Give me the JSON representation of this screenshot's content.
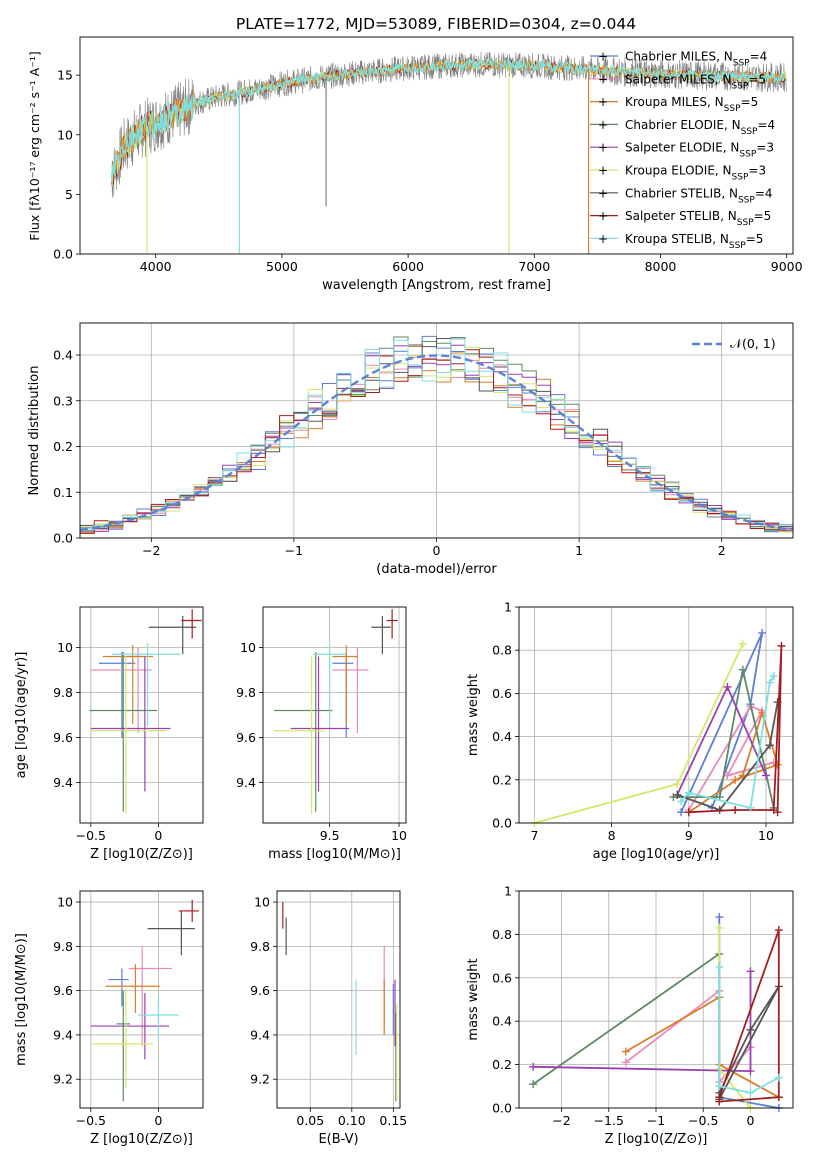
{
  "figure_title": "PLATE=1772, MJD=53089, FIBERID=0304, z=0.044",
  "legend_models": [
    {
      "label": "Chabrier MILES, N",
      "n": "=4",
      "color": "#5b7fd6",
      "marker": "+"
    },
    {
      "label": "Salpeter MILES, N",
      "n": "=5",
      "color": "#e98ab8",
      "marker": "+"
    },
    {
      "label": "Kroupa MILES, N",
      "n": "=5",
      "color": "#d97f2b",
      "marker": "+"
    },
    {
      "label": "Chabrier ELODIE, N",
      "n": "=4",
      "color": "#5d8a64",
      "marker": "+"
    },
    {
      "label": "Salpeter ELODIE, N",
      "n": "=3",
      "color": "#9b3fb0",
      "marker": "+"
    },
    {
      "label": "Kroupa ELODIE, N",
      "n": "=3",
      "color": "#d4e86a",
      "marker": "+"
    },
    {
      "label": "Chabrier STELIB, N",
      "n": "=4",
      "color": "#555555",
      "marker": "+"
    },
    {
      "label": "Salpeter STELIB, N",
      "n": "=5",
      "color": "#a31f1f",
      "marker": "+"
    },
    {
      "label": "Kroupa STELIB, N",
      "n": "=5",
      "color": "#7fdfe0",
      "marker": "+"
    }
  ],
  "legend_subscript": "SSP",
  "chart_data": [
    {
      "type": "line",
      "id": "spectrum",
      "xlabel": "wavelength [Angstrom, rest frame]",
      "ylabel": "Flux [f_λ 10^-17 erg cm^-2 s^-1 A^-1]",
      "xlim": [
        3400,
        9050
      ],
      "ylim": [
        0,
        18.2
      ],
      "xticks": [
        4000,
        5000,
        6000,
        7000,
        8000,
        9000
      ],
      "yticks": [
        0,
        5,
        10,
        15
      ],
      "data_range": [
        3650,
        9000
      ],
      "data_color": "#808080",
      "model_color": "#7fdfe0",
      "continuum": [
        [
          3650,
          6.5
        ],
        [
          3750,
          9.0
        ],
        [
          3900,
          10.5
        ],
        [
          4100,
          11.5
        ],
        [
          4300,
          12.6
        ],
        [
          4500,
          13.2
        ],
        [
          4800,
          13.8
        ],
        [
          5000,
          14.3
        ],
        [
          5300,
          14.8
        ],
        [
          5600,
          15.2
        ],
        [
          6000,
          15.6
        ],
        [
          6300,
          15.8
        ],
        [
          6600,
          15.9
        ],
        [
          7000,
          15.8
        ],
        [
          7400,
          15.5
        ],
        [
          7800,
          15.2
        ],
        [
          8200,
          15.0
        ],
        [
          8600,
          14.9
        ],
        [
          9000,
          14.8
        ]
      ],
      "spikes": [
        [
          4663,
          0
        ],
        [
          3930,
          0
        ],
        [
          6800,
          0
        ],
        [
          7430,
          0
        ],
        [
          5350,
          4.0
        ]
      ]
    },
    {
      "type": "step",
      "id": "residuals",
      "xlabel": "(data-model)/error",
      "ylabel": "Normed distribution",
      "xlim": [
        -2.5,
        2.5
      ],
      "ylim": [
        0,
        0.47
      ],
      "xticks": [
        -2,
        -1,
        0,
        1,
        2
      ],
      "yticks": [
        0.0,
        0.1,
        0.2,
        0.3,
        0.4
      ],
      "bin_width": 0.1,
      "reference": {
        "label": "𝒩(0, 1)",
        "mean": 0,
        "sigma": 1,
        "color": "#5b84d6"
      }
    },
    {
      "type": "errorbar",
      "id": "age_vs_Z",
      "xlabel": "Z [log10(Z/Z⊙)]",
      "ylabel": "age [log10(age/yr)]",
      "xlim": [
        -0.58,
        0.33
      ],
      "ylim": [
        9.22,
        10.18
      ],
      "xticks": [
        -0.5,
        0.0
      ],
      "yticks": [
        9.4,
        9.6,
        9.8,
        10.0
      ],
      "points": [
        {
          "model": 0,
          "x": -0.27,
          "xerr": [
            0.17,
            0.1
          ],
          "y": 9.93,
          "yerr": [
            0.33,
            0.05
          ]
        },
        {
          "model": 1,
          "x": -0.15,
          "xerr": [
            0.35,
            0.1
          ],
          "y": 9.9,
          "yerr": [
            0.28,
            0.1
          ]
        },
        {
          "model": 2,
          "x": -0.19,
          "xerr": [
            0.22,
            0.15
          ],
          "y": 9.96,
          "yerr": [
            0.3,
            0.05
          ]
        },
        {
          "model": 3,
          "x": -0.26,
          "xerr": [
            0.25,
            0.25
          ],
          "y": 9.72,
          "yerr": [
            0.45,
            0.26
          ]
        },
        {
          "model": 4,
          "x": -0.1,
          "xerr": [
            0.4,
            0.19
          ],
          "y": 9.64,
          "yerr": [
            0.28,
            0.32
          ]
        },
        {
          "model": 5,
          "x": -0.24,
          "xerr": [
            0.26,
            0.3
          ],
          "y": 9.63,
          "yerr": [
            0.37,
            0.33
          ]
        },
        {
          "model": 6,
          "x": 0.18,
          "xerr": [
            0.25,
            0.1
          ],
          "y": 10.09,
          "yerr": [
            0.12,
            0.05
          ]
        },
        {
          "model": 7,
          "x": 0.25,
          "xerr": [
            0.08,
            0.07
          ],
          "y": 10.12,
          "yerr": [
            0.08,
            0.05
          ]
        },
        {
          "model": 8,
          "x": -0.08,
          "xerr": [
            0.26,
            0.24
          ],
          "y": 9.97,
          "yerr": [
            0.32,
            0.05
          ]
        }
      ]
    },
    {
      "type": "errorbar",
      "id": "age_vs_mass",
      "xlabel": "mass [log10(M/M⊙)]",
      "ylabel": "",
      "xlim": [
        9.02,
        10.05
      ],
      "ylim": [
        9.22,
        10.18
      ],
      "xticks": [
        9.5,
        10.0
      ],
      "yticks": [
        9.4,
        9.6,
        9.8,
        10.0
      ],
      "points": [
        {
          "model": 0,
          "x": 9.62,
          "xerr": [
            0.1,
            0.05
          ],
          "y": 9.93,
          "yerr": [
            0.33,
            0.05
          ]
        },
        {
          "model": 1,
          "x": 9.7,
          "xerr": [
            0.18,
            0.08
          ],
          "y": 9.9,
          "yerr": [
            0.28,
            0.1
          ]
        },
        {
          "model": 2,
          "x": 9.62,
          "xerr": [
            0.1,
            0.08
          ],
          "y": 9.96,
          "yerr": [
            0.3,
            0.05
          ]
        },
        {
          "model": 3,
          "x": 9.4,
          "xerr": [
            0.3,
            0.12
          ],
          "y": 9.72,
          "yerr": [
            0.45,
            0.26
          ]
        },
        {
          "model": 4,
          "x": 9.42,
          "xerr": [
            0.2,
            0.22
          ],
          "y": 9.64,
          "yerr": [
            0.28,
            0.32
          ]
        },
        {
          "model": 5,
          "x": 9.37,
          "xerr": [
            0.27,
            0.1
          ],
          "y": 9.63,
          "yerr": [
            0.37,
            0.33
          ]
        },
        {
          "model": 6,
          "x": 9.88,
          "xerr": [
            0.08,
            0.06
          ],
          "y": 10.09,
          "yerr": [
            0.12,
            0.05
          ]
        },
        {
          "model": 7,
          "x": 9.95,
          "xerr": [
            0.04,
            0.04
          ],
          "y": 10.12,
          "yerr": [
            0.08,
            0.05
          ]
        },
        {
          "model": 8,
          "x": 9.5,
          "xerr": [
            0.12,
            0.12
          ],
          "y": 9.97,
          "yerr": [
            0.32,
            0.05
          ]
        }
      ]
    },
    {
      "type": "line",
      "id": "weights_vs_age",
      "xlabel": "age [log10(age/yr)]",
      "ylabel": "mass weight",
      "xlim": [
        6.8,
        10.35
      ],
      "ylim": [
        0,
        1.0
      ],
      "xticks": [
        7,
        8,
        9,
        10
      ],
      "yticks": [
        0.0,
        0.2,
        0.4,
        0.6,
        0.8,
        1.0
      ],
      "series": [
        {
          "model": 0,
          "x": [
            8.9,
            9.95,
            9.8,
            9.3
          ],
          "y": [
            0.05,
            0.88,
            0.55,
            0.07
          ]
        },
        {
          "model": 1,
          "x": [
            9.0,
            9.8,
            9.95,
            9.5,
            10.1
          ],
          "y": [
            0.06,
            0.54,
            0.52,
            0.22,
            0.28
          ]
        },
        {
          "model": 2,
          "x": [
            9.0,
            9.7,
            9.95,
            10.15,
            9.6
          ],
          "y": [
            0.05,
            0.22,
            0.51,
            0.27,
            0.2
          ]
        },
        {
          "model": 3,
          "x": [
            8.8,
            9.4,
            9.7,
            10.1
          ],
          "y": [
            0.12,
            0.12,
            0.71,
            0.07
          ]
        },
        {
          "model": 4,
          "x": [
            8.85,
            9.5,
            10.0
          ],
          "y": [
            0.13,
            0.63,
            0.22
          ]
        },
        {
          "model": 5,
          "x": [
            7.0,
            8.85,
            9.7
          ],
          "y": [
            0.0,
            0.18,
            0.83
          ]
        },
        {
          "model": 6,
          "x": [
            8.85,
            9.4,
            10.05,
            10.15
          ],
          "y": [
            0.13,
            0.06,
            0.36,
            0.56
          ]
        },
        {
          "model": 7,
          "x": [
            9.0,
            9.6,
            10.1,
            10.2,
            10.15
          ],
          "y": [
            0.05,
            0.06,
            0.06,
            0.82,
            0.05
          ]
        },
        {
          "model": 8,
          "x": [
            8.9,
            9.0,
            9.8,
            10.05,
            10.1
          ],
          "y": [
            0.1,
            0.14,
            0.07,
            0.65,
            0.68
          ]
        }
      ]
    },
    {
      "type": "errorbar",
      "id": "mass_vs_Z",
      "xlabel": "Z [log10(Z/Z⊙)]",
      "ylabel": "mass [log10(M/M⊙)]",
      "xlim": [
        -0.58,
        0.33
      ],
      "ylim": [
        9.07,
        10.05
      ],
      "xticks": [
        -0.5,
        0.0
      ],
      "yticks": [
        9.2,
        9.4,
        9.6,
        9.8,
        10.0
      ],
      "points": [
        {
          "model": 0,
          "x": -0.27,
          "xerr": [
            0.1,
            0.05
          ],
          "y": 9.65,
          "yerr": [
            0.12,
            0.05
          ]
        },
        {
          "model": 1,
          "x": -0.12,
          "xerr": [
            0.1,
            0.22
          ],
          "y": 9.7,
          "yerr": [
            0.35,
            0.1
          ]
        },
        {
          "model": 2,
          "x": -0.17,
          "xerr": [
            0.22,
            0.18
          ],
          "y": 9.62,
          "yerr": [
            0.12,
            0.1
          ]
        },
        {
          "model": 3,
          "x": -0.26,
          "xerr": [
            0.05,
            0.05
          ],
          "y": 9.45,
          "yerr": [
            0.35,
            0.15
          ]
        },
        {
          "model": 4,
          "x": -0.1,
          "xerr": [
            0.4,
            0.18
          ],
          "y": 9.44,
          "yerr": [
            0.15,
            0.15
          ]
        },
        {
          "model": 5,
          "x": -0.24,
          "xerr": [
            0.25,
            0.2
          ],
          "y": 9.36,
          "yerr": [
            0.2,
            0.25
          ]
        },
        {
          "model": 6,
          "x": 0.17,
          "xerr": [
            0.25,
            0.1
          ],
          "y": 9.88,
          "yerr": [
            0.12,
            0.08
          ]
        },
        {
          "model": 7,
          "x": 0.25,
          "xerr": [
            0.1,
            0.05
          ],
          "y": 9.96,
          "yerr": [
            0.05,
            0.05
          ]
        },
        {
          "model": 8,
          "x": 0.0,
          "xerr": [
            0.15,
            0.15
          ],
          "y": 9.49,
          "yerr": [
            0.12,
            0.08
          ]
        }
      ]
    },
    {
      "type": "errorbar",
      "id": "mass_vs_ebv",
      "xlabel": "E(B-V)",
      "ylabel": "",
      "xlim": [
        0.01,
        0.158
      ],
      "ylim": [
        9.07,
        10.05
      ],
      "xticks": [
        0.05,
        0.1,
        0.15
      ],
      "xtick_labels": [
        "0.05",
        "0.10",
        "0.15"
      ],
      "yticks": [
        9.2,
        9.4,
        9.6,
        9.8,
        10.0
      ],
      "points": [
        {
          "model": 0,
          "x": 0.15,
          "y": 9.55,
          "yerr": [
            0.15,
            0.08
          ]
        },
        {
          "model": 1,
          "x": 0.139,
          "y": 9.65,
          "yerr": [
            0.22,
            0.15
          ]
        },
        {
          "model": 2,
          "x": 0.139,
          "y": 9.6,
          "yerr": [
            0.2,
            0.05
          ]
        },
        {
          "model": 3,
          "x": 0.153,
          "y": 9.35,
          "yerr": [
            0.25,
            0.15
          ]
        },
        {
          "model": 4,
          "x": 0.152,
          "y": 9.5,
          "yerr": [
            0.15,
            0.15
          ]
        },
        {
          "model": 5,
          "x": 0.154,
          "y": 9.4,
          "yerr": [
            0.3,
            0.14
          ]
        },
        {
          "model": 6,
          "x": 0.021,
          "y": 9.88,
          "yerr": [
            0.12,
            0.05
          ]
        },
        {
          "model": 7,
          "x": 0.017,
          "y": 9.94,
          "yerr": [
            0.06,
            0.06
          ]
        },
        {
          "model": 8,
          "x": 0.105,
          "y": 9.48,
          "yerr": [
            0.17,
            0.17
          ]
        }
      ]
    },
    {
      "type": "line",
      "id": "weights_vs_Z",
      "xlabel": "Z [log10(Z/Z⊙)]",
      "ylabel": "mass weight",
      "xlim": [
        -2.45,
        0.45
      ],
      "ylim": [
        0,
        1.0
      ],
      "xticks": [
        -2.0,
        -1.5,
        -1.0,
        -0.5,
        0.0
      ],
      "yticks": [
        0.0,
        0.2,
        0.4,
        0.6,
        0.8,
        1.0
      ],
      "series": [
        {
          "model": 0,
          "x": [
            -0.33,
            -0.33,
            0.3
          ],
          "y": [
            0.88,
            0.05,
            0.0
          ]
        },
        {
          "model": 1,
          "x": [
            -1.32,
            -0.33,
            -0.33,
            0.0
          ],
          "y": [
            0.21,
            0.54,
            0.12,
            0.28
          ]
        },
        {
          "model": 2,
          "x": [
            -1.32,
            -0.33,
            -0.33,
            0.3
          ],
          "y": [
            0.26,
            0.51,
            0.2,
            0.05
          ]
        },
        {
          "model": 3,
          "x": [
            -2.3,
            -0.33,
            -0.33
          ],
          "y": [
            0.11,
            0.71,
            0.05
          ]
        },
        {
          "model": 4,
          "x": [
            -2.3,
            0.0,
            0.0
          ],
          "y": [
            0.19,
            0.17,
            0.63
          ]
        },
        {
          "model": 5,
          "x": [
            -0.33,
            -0.33,
            0.0
          ],
          "y": [
            0.83,
            0.18,
            0.0
          ]
        },
        {
          "model": 6,
          "x": [
            -0.33,
            0.0,
            0.3,
            -0.33
          ],
          "y": [
            0.07,
            0.36,
            0.56,
            0.04
          ]
        },
        {
          "model": 7,
          "x": [
            -0.33,
            0.3,
            0.3,
            -0.33
          ],
          "y": [
            0.05,
            0.82,
            0.05,
            0.03
          ]
        },
        {
          "model": 8,
          "x": [
            -0.33,
            -0.33,
            0.0,
            0.3
          ],
          "y": [
            0.65,
            0.1,
            0.07,
            0.14
          ]
        }
      ]
    }
  ]
}
